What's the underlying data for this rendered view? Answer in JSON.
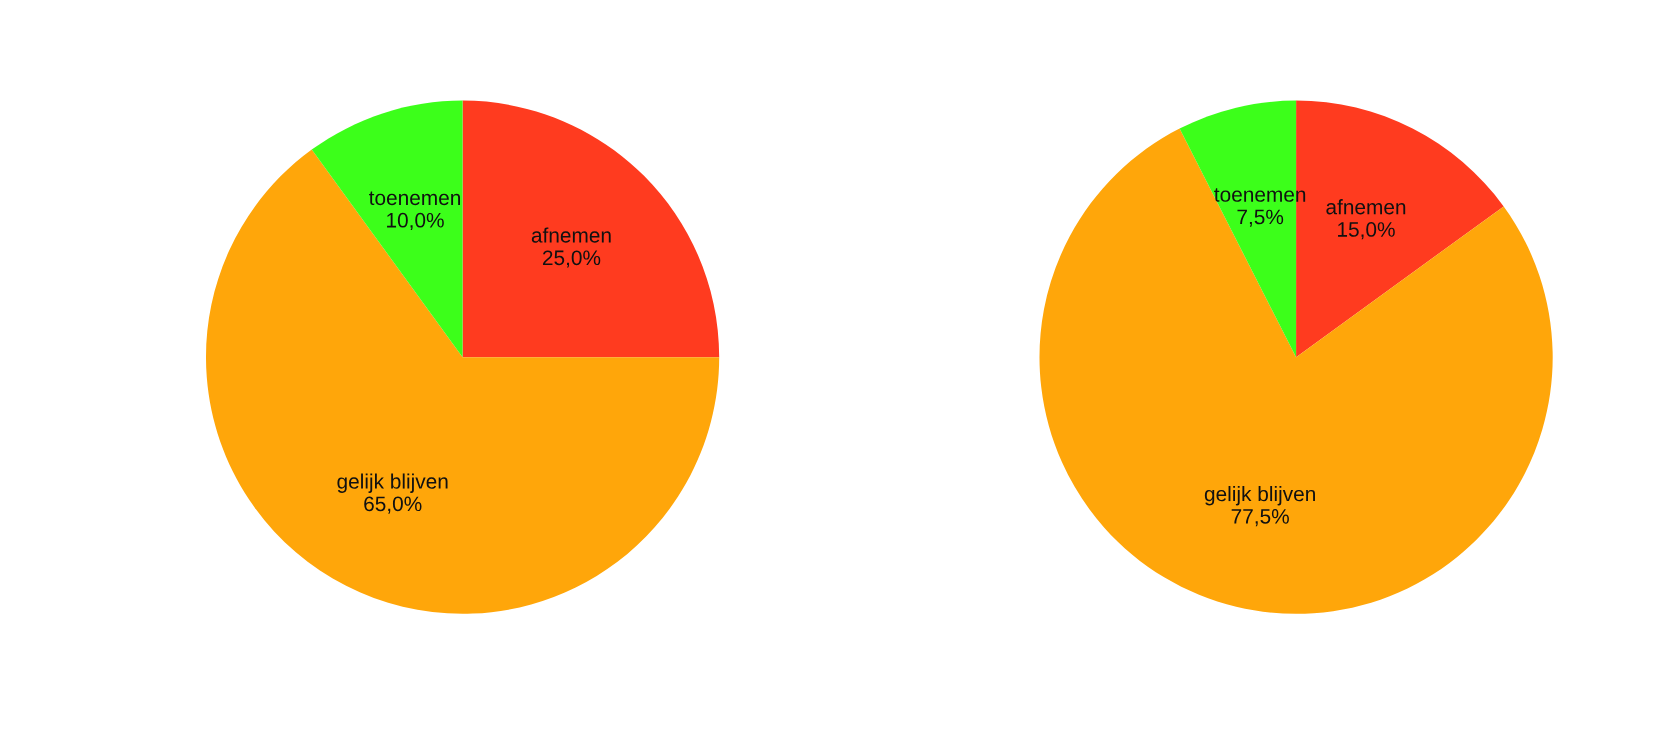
{
  "chart_data": [
    {
      "type": "pie",
      "categories": [
        "afnemen",
        "gelijk blijven",
        "toenemen"
      ],
      "values": [
        25,
        65,
        10
      ],
      "value_labels": [
        "25,0%",
        "65,0%",
        "10,0%"
      ],
      "colors": [
        "#ff3b1f",
        "#ffa60a",
        "#3cff1a"
      ]
    },
    {
      "type": "pie",
      "categories": [
        "afnemen",
        "gelijk blijven",
        "toenemen"
      ],
      "values": [
        15,
        77.5,
        7.5
      ],
      "value_labels": [
        "15,0%",
        "77,5%",
        "7,5%"
      ],
      "colors": [
        "#ff3b1f",
        "#ffa60a",
        "#3cff1a"
      ]
    }
  ]
}
